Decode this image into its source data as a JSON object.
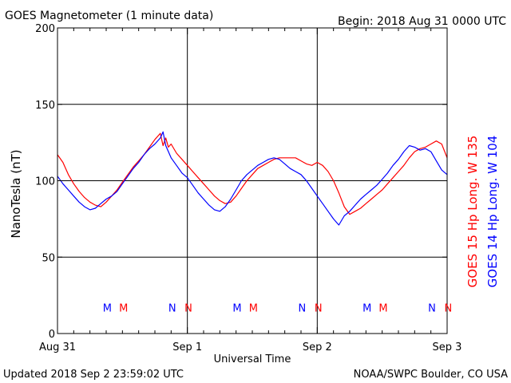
{
  "header": {
    "title": "GOES Magnetometer (1 minute data)",
    "begin": "Begin:  2018 Aug 31 0000 UTC"
  },
  "footer": {
    "updated": "Updated 2018 Sep  2 23:59:02 UTC",
    "credit": "NOAA/SWPC Boulder, CO USA"
  },
  "colors": {
    "goes15": "#ff0000",
    "goes14": "#0000ff"
  },
  "chart_data": {
    "type": "line",
    "title": "GOES Magnetometer (1 minute data)",
    "xlabel": "Universal Time",
    "ylabel": "NanoTesla (nT)",
    "xlim": [
      0,
      72
    ],
    "ylim": [
      0,
      200
    ],
    "grid": true,
    "yticks": [
      0,
      50,
      100,
      150,
      200
    ],
    "xticks": [
      {
        "x": 0,
        "label": "Aug 31"
      },
      {
        "x": 24,
        "label": "Sep 1"
      },
      {
        "x": 48,
        "label": "Sep 2"
      },
      {
        "x": 72,
        "label": "Sep 3"
      }
    ],
    "legend_placement": "right",
    "series": [
      {
        "name": "GOES 15 Hp  Long. W 135",
        "color": "#ff0000",
        "points": [
          [
            0,
            117
          ],
          [
            1,
            112
          ],
          [
            2,
            104
          ],
          [
            3,
            98
          ],
          [
            4,
            93
          ],
          [
            5,
            89
          ],
          [
            6,
            86
          ],
          [
            7,
            84
          ],
          [
            8,
            83
          ],
          [
            9,
            86
          ],
          [
            10,
            90
          ],
          [
            11,
            94
          ],
          [
            12,
            99
          ],
          [
            13,
            104
          ],
          [
            14,
            109
          ],
          [
            15,
            113
          ],
          [
            16,
            117
          ],
          [
            17,
            122
          ],
          [
            18,
            127
          ],
          [
            19,
            131
          ],
          [
            19.5,
            123
          ],
          [
            20,
            128
          ],
          [
            20.5,
            122
          ],
          [
            21,
            124
          ],
          [
            22,
            118
          ],
          [
            23,
            114
          ],
          [
            24,
            110
          ],
          [
            25,
            106
          ],
          [
            26,
            102
          ],
          [
            27,
            98
          ],
          [
            28,
            94
          ],
          [
            29,
            90
          ],
          [
            30,
            87
          ],
          [
            31,
            85
          ],
          [
            32,
            86
          ],
          [
            33,
            90
          ],
          [
            34,
            95
          ],
          [
            35,
            100
          ],
          [
            36,
            104
          ],
          [
            37,
            108
          ],
          [
            38,
            110
          ],
          [
            39,
            112
          ],
          [
            40,
            114
          ],
          [
            41,
            115
          ],
          [
            42,
            115
          ],
          [
            43,
            115
          ],
          [
            44,
            115
          ],
          [
            45,
            113
          ],
          [
            46,
            111
          ],
          [
            47,
            110
          ],
          [
            48,
            112
          ],
          [
            49,
            110
          ],
          [
            50,
            106
          ],
          [
            51,
            100
          ],
          [
            52,
            92
          ],
          [
            53,
            83
          ],
          [
            54,
            78
          ],
          [
            55,
            80
          ],
          [
            56,
            82
          ],
          [
            57,
            85
          ],
          [
            58,
            88
          ],
          [
            59,
            91
          ],
          [
            60,
            94
          ],
          [
            61,
            98
          ],
          [
            62,
            102
          ],
          [
            63,
            106
          ],
          [
            64,
            110
          ],
          [
            65,
            115
          ],
          [
            66,
            119
          ],
          [
            67,
            121
          ],
          [
            68,
            122
          ],
          [
            69,
            124
          ],
          [
            70,
            126
          ],
          [
            71,
            124
          ],
          [
            72,
            115
          ]
        ]
      },
      {
        "name": "GOES 14 Hp  Long. W 104",
        "color": "#0000ff",
        "points": [
          [
            0,
            103
          ],
          [
            1,
            98
          ],
          [
            2,
            94
          ],
          [
            3,
            90
          ],
          [
            4,
            86
          ],
          [
            5,
            83
          ],
          [
            6,
            81
          ],
          [
            7,
            82
          ],
          [
            8,
            85
          ],
          [
            9,
            88
          ],
          [
            10,
            90
          ],
          [
            11,
            93
          ],
          [
            12,
            98
          ],
          [
            13,
            103
          ],
          [
            14,
            108
          ],
          [
            15,
            112
          ],
          [
            16,
            117
          ],
          [
            17,
            121
          ],
          [
            18,
            124
          ],
          [
            19,
            128
          ],
          [
            19.5,
            132
          ],
          [
            20,
            123
          ],
          [
            21,
            115
          ],
          [
            22,
            110
          ],
          [
            23,
            105
          ],
          [
            24,
            102
          ],
          [
            25,
            97
          ],
          [
            26,
            92
          ],
          [
            27,
            88
          ],
          [
            28,
            84
          ],
          [
            29,
            81
          ],
          [
            30,
            80
          ],
          [
            31,
            83
          ],
          [
            32,
            88
          ],
          [
            33,
            94
          ],
          [
            34,
            100
          ],
          [
            35,
            104
          ],
          [
            36,
            107
          ],
          [
            37,
            110
          ],
          [
            38,
            112
          ],
          [
            39,
            114
          ],
          [
            40,
            115
          ],
          [
            41,
            114
          ],
          [
            42,
            111
          ],
          [
            43,
            108
          ],
          [
            44,
            106
          ],
          [
            45,
            104
          ],
          [
            46,
            100
          ],
          [
            47,
            95
          ],
          [
            48,
            90
          ],
          [
            49,
            85
          ],
          [
            50,
            80
          ],
          [
            51,
            75
          ],
          [
            52,
            71
          ],
          [
            53,
            77
          ],
          [
            54,
            80
          ],
          [
            55,
            84
          ],
          [
            56,
            88
          ],
          [
            57,
            91
          ],
          [
            58,
            94
          ],
          [
            59,
            97
          ],
          [
            60,
            101
          ],
          [
            61,
            105
          ],
          [
            62,
            110
          ],
          [
            63,
            114
          ],
          [
            64,
            119
          ],
          [
            65,
            123
          ],
          [
            66,
            122
          ],
          [
            67,
            120
          ],
          [
            68,
            121
          ],
          [
            69,
            119
          ],
          [
            70,
            113
          ],
          [
            71,
            107
          ],
          [
            72,
            104
          ]
        ]
      }
    ],
    "markers": [
      {
        "x": 9.2,
        "label": "M",
        "series": 1
      },
      {
        "x": 12.2,
        "label": "M",
        "series": 0
      },
      {
        "x": 21.2,
        "label": "N",
        "series": 1
      },
      {
        "x": 24.2,
        "label": "N",
        "series": 0
      },
      {
        "x": 33.2,
        "label": "M",
        "series": 1
      },
      {
        "x": 36.2,
        "label": "M",
        "series": 0
      },
      {
        "x": 45.2,
        "label": "N",
        "series": 1
      },
      {
        "x": 48.2,
        "label": "N",
        "series": 0
      },
      {
        "x": 57.2,
        "label": "M",
        "series": 1
      },
      {
        "x": 60.2,
        "label": "M",
        "series": 0
      },
      {
        "x": 69.2,
        "label": "N",
        "series": 1
      },
      {
        "x": 72.2,
        "label": "N",
        "series": 0
      }
    ],
    "marker_y": 17
  }
}
